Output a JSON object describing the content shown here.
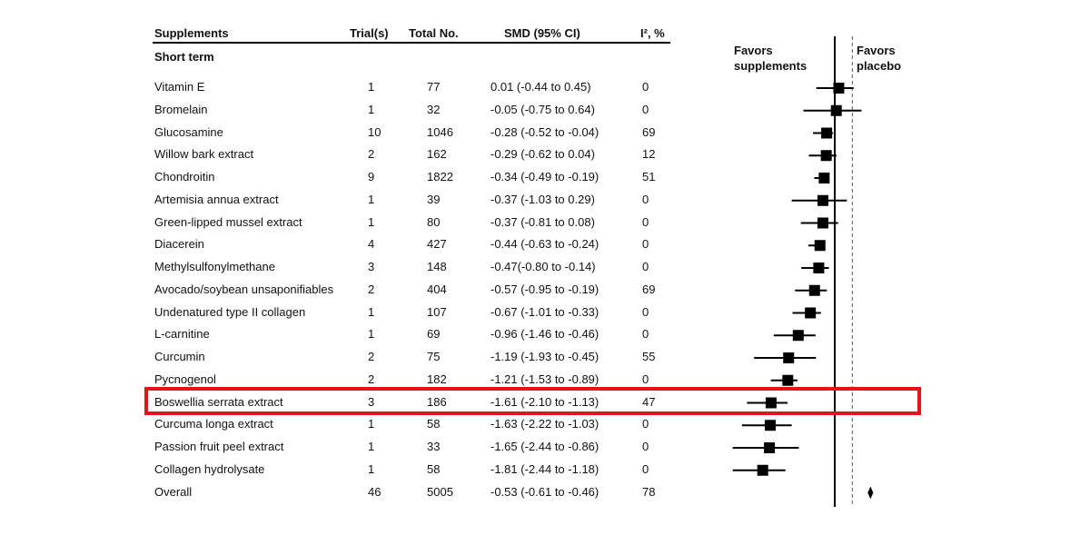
{
  "columns": {
    "supplements": "Supplements",
    "trials": "Trial(s)",
    "total": "Total No.",
    "smd": "SMD (95% CI)",
    "i2": "I², %"
  },
  "subtitle": "Short term",
  "favors_left": [
    "Favors",
    "supplements"
  ],
  "favors_right": [
    "Favors",
    "placebo"
  ],
  "highlight_row": 14,
  "chart_data": {
    "type": "forest",
    "null_line": 0,
    "overall_line": -0.53,
    "rows": [
      {
        "name": "Vitamin E",
        "trials": "1",
        "total": "77",
        "ci_text": "0.01 (-0.44 to 0.45)",
        "i2": "0",
        "smd": 0.01,
        "lo": -0.44,
        "hi": 0.45
      },
      {
        "name": "Bromelain",
        "trials": "1",
        "total": "32",
        "ci_text": "-0.05 (-0.75 to 0.64)",
        "i2": "0",
        "smd": -0.05,
        "lo": -0.75,
        "hi": 0.64
      },
      {
        "name": "Glucosamine",
        "trials": "10",
        "total": "1046",
        "ci_text": "-0.28 (-0.52 to -0.04)",
        "i2": "69",
        "smd": -0.28,
        "lo": -0.52,
        "hi": -0.04
      },
      {
        "name": "Willow bark extract",
        "trials": "2",
        "total": "162",
        "ci_text": "-0.29 (-0.62 to 0.04)",
        "i2": "12",
        "smd": -0.29,
        "lo": -0.62,
        "hi": 0.04
      },
      {
        "name": "Chondroitin",
        "trials": "9",
        "total": "1822",
        "ci_text": "-0.34 (-0.49 to -0.19)",
        "i2": "51",
        "smd": -0.34,
        "lo": -0.49,
        "hi": -0.19
      },
      {
        "name": "Artemisia annua extract",
        "trials": "1",
        "total": "39",
        "ci_text": "-0.37 (-1.03 to 0.29)",
        "i2": "0",
        "smd": -0.37,
        "lo": -1.03,
        "hi": 0.29
      },
      {
        "name": "Green-lipped mussel extract",
        "trials": "1",
        "total": "80",
        "ci_text": "-0.37 (-0.81 to 0.08)",
        "i2": "0",
        "smd": -0.37,
        "lo": -0.81,
        "hi": 0.08
      },
      {
        "name": "Diacerein",
        "trials": "4",
        "total": "427",
        "ci_text": "-0.44 (-0.63 to -0.24)",
        "i2": "0",
        "smd": -0.44,
        "lo": -0.63,
        "hi": -0.24
      },
      {
        "name": "Methylsulfonylmethane",
        "trials": "3",
        "total": "148",
        "ci_text": "-0.47(-0.80 to -0.14)",
        "i2": "0",
        "smd": -0.47,
        "lo": -0.8,
        "hi": -0.14
      },
      {
        "name": "Avocado/soybean unsaponifiables",
        "trials": "2",
        "total": "404",
        "ci_text": "-0.57 (-0.95 to -0.19)",
        "i2": "69",
        "smd": -0.57,
        "lo": -0.95,
        "hi": -0.19
      },
      {
        "name": "Undenatured type II collagen",
        "trials": "1",
        "total": "107",
        "ci_text": "-0.67 (-1.01 to -0.33)",
        "i2": "0",
        "smd": -0.67,
        "lo": -1.01,
        "hi": -0.33
      },
      {
        "name": "L-carnitine",
        "trials": "1",
        "total": "69",
        "ci_text": "-0.96 (-1.46 to -0.46)",
        "i2": "0",
        "smd": -0.96,
        "lo": -1.46,
        "hi": -0.46
      },
      {
        "name": "Curcumin",
        "trials": "2",
        "total": "75",
        "ci_text": "-1.19 (-1.93 to -0.45)",
        "i2": "55",
        "smd": -1.19,
        "lo": -1.93,
        "hi": -0.45
      },
      {
        "name": "Pycnogenol",
        "trials": "2",
        "total": "182",
        "ci_text": "-1.21 (-1.53 to -0.89)",
        "i2": "0",
        "smd": -1.21,
        "lo": -1.53,
        "hi": -0.89
      },
      {
        "name": "Boswellia serrata extract",
        "trials": "3",
        "total": "186",
        "ci_text": "-1.61 (-2.10 to -1.13)",
        "i2": "47",
        "smd": -1.61,
        "lo": -2.1,
        "hi": -1.13
      },
      {
        "name": "Curcuma longa extract",
        "trials": "1",
        "total": "58",
        "ci_text": "-1.63 (-2.22 to -1.03)",
        "i2": "0",
        "smd": -1.63,
        "lo": -2.22,
        "hi": -1.03
      },
      {
        "name": "Passion fruit peel extract",
        "trials": "1",
        "total": "33",
        "ci_text": "-1.65 (-2.44 to -0.86)",
        "i2": "0",
        "smd": -1.65,
        "lo": -2.44,
        "hi": -0.86
      },
      {
        "name": "Collagen hydrolysate",
        "trials": "1",
        "total": "58",
        "ci_text": "-1.81 (-2.44 to -1.18)",
        "i2": "0",
        "smd": -1.81,
        "lo": -2.44,
        "hi": -1.18
      }
    ],
    "overall": {
      "name": "Overall",
      "trials": "46",
      "total": "5005",
      "ci_text": "-0.53 (-0.61 to -0.46)",
      "i2": "78",
      "smd": -0.53,
      "lo": -0.61,
      "hi": -0.46
    },
    "colors": {
      "marker": "#000000",
      "highlight": "#e8121a"
    }
  }
}
